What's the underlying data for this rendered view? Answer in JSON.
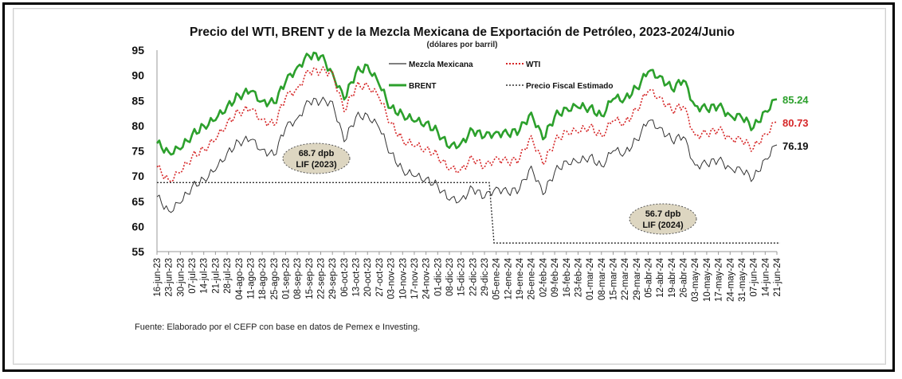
{
  "chart_data": {
    "type": "line",
    "title": "Precio del WTI, BRENT y de la Mezcla Mexicana de Exportación de Petróleo, 2023-2024/Junio",
    "subtitle": "(dólares por barril)",
    "ylim": [
      55,
      95
    ],
    "yticks": [
      "55",
      "60",
      "65",
      "70",
      "75",
      "80",
      "85",
      "90",
      "95"
    ],
    "x_tick_labels": [
      "16-jun-23",
      "23-jun-23",
      "30-jun-23",
      "07-jul-23",
      "14-jul-23",
      "21-jul-23",
      "28-jul-23",
      "04-ago-23",
      "11-ago-23",
      "18-ago-23",
      "25-ago-23",
      "01-sep-23",
      "08-sep-23",
      "15-sep-23",
      "22-sep-23",
      "29-sep-23",
      "06-oct-23",
      "13-oct-23",
      "20-oct-23",
      "27-oct-23",
      "03-nov-23",
      "10-nov-23",
      "17-nov-23",
      "24-nov-23",
      "01-dic-23",
      "08-dic-23",
      "15-dic-23",
      "22-dic-23",
      "29-dic-23",
      "05-ene-24",
      "12-ene-24",
      "19-ene-24",
      "26-ene-24",
      "02-feb-24",
      "09-feb-24",
      "16-feb-24",
      "23-feb-24",
      "01-mar-24",
      "08-mar-24",
      "15-mar-24",
      "22-mar-24",
      "29-mar-24",
      "05-abr-24",
      "12-abr-24",
      "19-abr-24",
      "26-abr-24",
      "03-may-24",
      "10-may-24",
      "17-may-24",
      "24-may-24",
      "31-may-24",
      "07-jun-24",
      "14-jun-24",
      "21-jun-24"
    ],
    "legend": [
      "Mezcla Mexicana",
      "WTI",
      "BRENT",
      "Precio Fiscal Estimado"
    ],
    "series": [
      {
        "name": "BRENT",
        "color": "#2ca02c",
        "style": "solid-thick",
        "values": [
          76.5,
          74.8,
          75.3,
          78.2,
          80.0,
          81.1,
          83.9,
          86.0,
          86.8,
          84.9,
          84.5,
          88.7,
          91.7,
          93.9,
          93.8,
          90.5,
          85.2,
          90.5,
          92.0,
          88.1,
          83.5,
          82.3,
          80.8,
          80.6,
          78.8,
          75.6,
          76.6,
          79.1,
          77.8,
          78.8,
          78.3,
          79.1,
          82.6,
          77.3,
          81.8,
          83.5,
          83.6,
          83.6,
          82.0,
          85.3,
          85.4,
          87.5,
          90.7,
          89.9,
          87.3,
          89.0,
          84.0,
          83.3,
          83.9,
          82.1,
          81.6,
          79.6,
          82.9,
          85.24
        ]
      },
      {
        "name": "WTI",
        "color": "#d62728",
        "style": "dotted",
        "values": [
          71.8,
          69.2,
          70.6,
          73.9,
          75.4,
          77.1,
          80.6,
          82.8,
          83.2,
          81.3,
          80.1,
          85.6,
          87.5,
          90.8,
          90.8,
          90.8,
          82.8,
          87.7,
          88.2,
          85.5,
          80.5,
          77.2,
          75.9,
          75.5,
          74.1,
          71.2,
          71.4,
          73.6,
          71.7,
          73.8,
          72.7,
          73.4,
          78.0,
          72.3,
          76.8,
          79.0,
          78.6,
          79.9,
          78.0,
          81.0,
          80.6,
          83.2,
          86.9,
          85.7,
          83.1,
          83.8,
          78.2,
          78.4,
          79.2,
          77.7,
          77.0,
          75.5,
          78.4,
          80.73
        ]
      },
      {
        "name": "Mezcla Mexicana",
        "color": "#333333",
        "style": "solid-thin",
        "values": [
          65.9,
          63.1,
          64.6,
          67.9,
          69.4,
          71.1,
          74.6,
          76.8,
          77.2,
          75.3,
          74.1,
          79.6,
          81.5,
          84.8,
          84.8,
          84.8,
          76.8,
          81.7,
          82.2,
          79.5,
          74.5,
          71.2,
          69.9,
          69.5,
          68.1,
          65.2,
          65.4,
          67.6,
          65.7,
          67.8,
          66.7,
          67.4,
          72.0,
          66.3,
          70.8,
          73.0,
          72.6,
          73.9,
          72.0,
          75.0,
          74.6,
          77.2,
          80.9,
          79.7,
          77.1,
          77.8,
          72.2,
          72.4,
          73.2,
          71.7,
          71.0,
          69.5,
          73.4,
          76.19
        ]
      }
    ],
    "fiscal_price": {
      "name": "Precio Fiscal Estimado",
      "color": "#333333",
      "style": "dotted",
      "values_2023": 68.7,
      "values_2024": 56.7,
      "change_after_category": "29-dic-23"
    },
    "end_labels": [
      {
        "text": "85.24",
        "color": "#2ca02c"
      },
      {
        "text": "80.73",
        "color": "#d62728"
      },
      {
        "text": "76.19",
        "color": "#111111"
      }
    ],
    "annotations": [
      {
        "line1": "68.7 dpb",
        "line2": "LIF (2023)"
      },
      {
        "line1": "56.7 dpb",
        "line2": "LIF (2024)"
      }
    ],
    "source": "Fuente: Elaborado por el CEFP con base en datos de Pemex e Investing.",
    "legend_placement": "top-center",
    "grid": false
  }
}
